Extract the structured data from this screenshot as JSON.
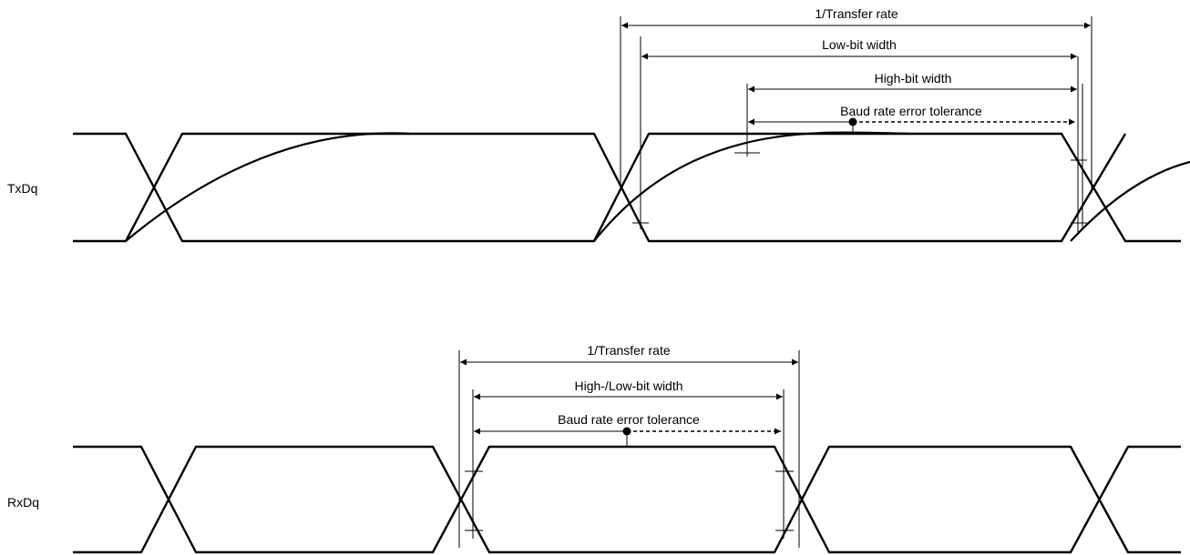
{
  "signals": {
    "tx": "TxDq",
    "rx": "RxDq"
  },
  "tx_dims": {
    "transfer_rate": "1/Transfer rate",
    "low_bit": "Low-bit width",
    "high_bit": "High-bit width",
    "tolerance": "Baud rate error tolerance"
  },
  "rx_dims": {
    "transfer_rate": "1/Transfer rate",
    "bit_width": "High-/Low-bit width",
    "tolerance": "Baud rate error tolerance"
  }
}
